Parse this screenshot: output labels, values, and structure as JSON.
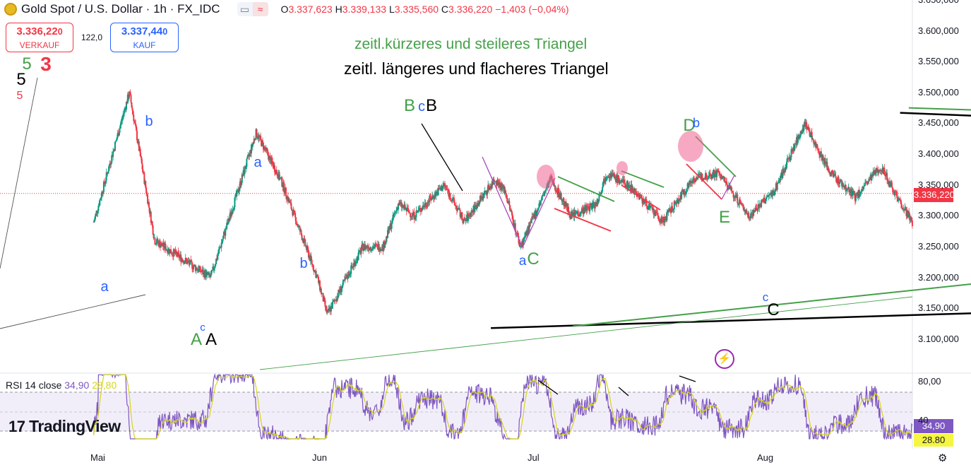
{
  "header": {
    "title": "Gold Spot / U.S. Dollar · 1h · FX_IDC",
    "open_label": "O",
    "open": "3.337,623",
    "high_label": "H",
    "high": "3.339,133",
    "low_label": "L",
    "low": "3.335,560",
    "close_label": "C",
    "close": "3.336,220",
    "change": "−1,403 (−0,04%)",
    "toggle_left": "▭",
    "toggle_right": "≈"
  },
  "trade": {
    "sell_price": "3.336,22",
    "sell_price_small": "0",
    "sell_label": "VERKAUF",
    "spread": "122,0",
    "buy_price": "3.337,44",
    "buy_price_small": "0",
    "buy_label": "KAUF"
  },
  "annotations": {
    "green_title": "zeitl.kürzeres und steileres Triangel",
    "black_title": "zeitl. längeres und flacheres Triangel"
  },
  "rsi": {
    "label": "RSI 14 close",
    "value": "34,90",
    "ma_value": "28,80",
    "tag_value": "34,90",
    "tag_ma": "28.80"
  },
  "price_tag": "3.336,220",
  "branding": "TradingView",
  "colors": {
    "up": "#089981",
    "down": "#f23645",
    "green_lines": "#43a047",
    "black_lines": "#000000",
    "purple": "#ab47bc",
    "wave_blue": "#2962ff",
    "rsi": "#7e57c2",
    "rsi_ma": "#d5d51a"
  },
  "chart_data": {
    "type": "candlestick",
    "ylabel": "",
    "ylim": [
      3060,
      3650
    ],
    "y_ticks": [
      "3.650,000",
      "3.600,000",
      "3.550,000",
      "3.500,000",
      "3.450,000",
      "3.400,000",
      "3.350,000",
      "3.300,000",
      "3.250,000",
      "3.200,000",
      "3.150,000",
      "3.100,000"
    ],
    "x_ticks": [
      "Mai",
      "Jun",
      "Jul",
      "Aug"
    ],
    "rsi_ticks": [
      "80,00",
      "40"
    ],
    "close_price": 3336.22,
    "price_path": [
      [
        -0.1,
        3290
      ],
      [
        0.6,
        3500
      ],
      [
        1.1,
        3260
      ],
      [
        2.2,
        3200
      ],
      [
        3.1,
        3435
      ],
      [
        3.6,
        3355
      ],
      [
        4.3,
        3200
      ],
      [
        4.5,
        3140
      ],
      [
        5.2,
        3250
      ],
      [
        5.6,
        3250
      ],
      [
        5.9,
        3320
      ],
      [
        6.2,
        3300
      ],
      [
        6.8,
        3350
      ],
      [
        7.2,
        3290
      ],
      [
        7.8,
        3360
      ],
      [
        8.0,
        3340
      ],
      [
        8.3,
        3250
      ],
      [
        8.9,
        3360
      ],
      [
        9.3,
        3300
      ],
      [
        9.8,
        3320
      ],
      [
        10.0,
        3370
      ],
      [
        10.5,
        3345
      ],
      [
        11.1,
        3290
      ],
      [
        11.7,
        3360
      ],
      [
        12.2,
        3370
      ],
      [
        12.8,
        3300
      ],
      [
        13.3,
        3340
      ],
      [
        13.9,
        3450
      ],
      [
        14.4,
        3370
      ],
      [
        14.9,
        3330
      ],
      [
        15.4,
        3380
      ],
      [
        15.8,
        3320
      ],
      [
        16.3,
        3250
      ],
      [
        16.7,
        3345
      ],
      [
        17.0,
        3345
      ],
      [
        17.7,
        3335
      ],
      [
        18.4,
        3295
      ],
      [
        18.7,
        3335
      ],
      [
        19.4,
        3375
      ],
      [
        19.8,
        3350
      ],
      [
        20.2,
        3355
      ],
      [
        20.7,
        3310
      ],
      [
        21.2,
        3360
      ],
      [
        21.5,
        3355
      ],
      [
        21.9,
        3440
      ],
      [
        22.2,
        3420
      ],
      [
        22.8,
        3330
      ],
      [
        23.1,
        3345
      ],
      [
        23.3,
        3320
      ],
      [
        23.4,
        3336
      ]
    ],
    "lines": {
      "black_triangle_upper": [
        [
          15.78,
          3467
        ],
        [
          33.3,
          3410
        ]
      ],
      "black_triangle_lower": [
        [
          7.72,
          3118
        ],
        [
          33.3,
          3183
        ]
      ],
      "green_triangle_upper": [
        [
          15.95,
          3475
        ],
        [
          33.98,
          3428
        ]
      ],
      "green_triangle_lower": [
        [
          9.33,
          3121
        ],
        [
          35.28,
          3347
        ]
      ],
      "green_breakout": [
        [
          23.5,
          3330
        ],
        [
          27.12,
          3637
        ]
      ],
      "black_projection": [
        [
          27.8,
          3172
        ],
        [
          33.3,
          3355
        ]
      ],
      "purple_projection": [
        [
          23.4,
          3336
        ],
        [
          27.8,
          3172
        ]
      ]
    },
    "wave_labels": [
      {
        "text": "5",
        "color": "#000000"
      },
      {
        "text": "5",
        "color": "#43a047"
      },
      {
        "text": "3",
        "color": "#f23645"
      },
      {
        "text": "5",
        "color": "#f23645"
      },
      {
        "text": "a",
        "color": "#2962ff"
      },
      {
        "text": "b",
        "color": "#2962ff"
      },
      {
        "text": "c",
        "color": "#2962ff"
      },
      {
        "text": "A",
        "color": "#43a047"
      },
      {
        "text": "A",
        "color": "#000000"
      },
      {
        "text": "a",
        "color": "#2962ff"
      },
      {
        "text": "b",
        "color": "#2962ff"
      },
      {
        "text": "B",
        "color": "#43a047"
      },
      {
        "text": "c",
        "color": "#2962ff"
      },
      {
        "text": "B",
        "color": "#000000"
      },
      {
        "text": "a",
        "color": "#2962ff"
      },
      {
        "text": "C",
        "color": "#43a047"
      },
      {
        "text": "D",
        "color": "#43a047"
      },
      {
        "text": "b",
        "color": "#2962ff"
      },
      {
        "text": "E",
        "color": "#43a047"
      },
      {
        "text": "c",
        "color": "#2962ff"
      },
      {
        "text": "C",
        "color": "#000000"
      }
    ]
  }
}
